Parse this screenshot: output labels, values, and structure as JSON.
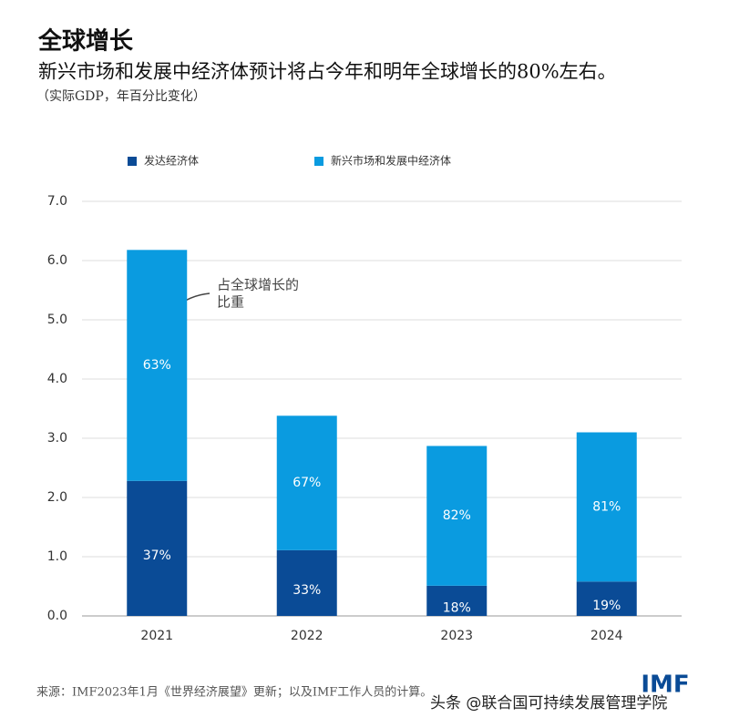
{
  "chart_data": {
    "type": "stacked_bar",
    "title": "全球增长",
    "subtitle": "新兴市场和发展中经济体预计将占今年和明年全球增长的80%左右。",
    "note": "（实际GDP，年百分比变化）",
    "categories": [
      "2021",
      "2022",
      "2023",
      "2024"
    ],
    "series": [
      {
        "name": "发达经济体",
        "color": "#0a4b96",
        "values": [
          2.28,
          1.11,
          0.51,
          0.58
        ],
        "share_labels": [
          "37%",
          "33%",
          "18%",
          "19%"
        ]
      },
      {
        "name": "新兴市场和发展中经济体",
        "color": "#0a9be0",
        "values": [
          3.9,
          2.27,
          2.36,
          2.52
        ],
        "share_labels": [
          "63%",
          "67%",
          "82%",
          "81%"
        ]
      }
    ],
    "ylim": [
      0,
      7
    ],
    "yticks": [
      {
        "value": 0,
        "label": "0.0"
      },
      {
        "value": 1,
        "label": "1.0"
      },
      {
        "value": 2,
        "label": "2.0"
      },
      {
        "value": 3,
        "label": "3.0"
      },
      {
        "value": 4,
        "label": "4.0"
      },
      {
        "value": 5,
        "label": "5.0"
      },
      {
        "value": 6,
        "label": "6.0"
      },
      {
        "value": 7,
        "label": "7.0"
      }
    ],
    "grid": true,
    "annotation": [
      "占全球增长的",
      "比重"
    ],
    "source": "来源：IMF2023年1月《世界经济展望》更新；以及IMF工作人员的计算。",
    "logo": "IMF",
    "watermark": "头条 @联合国可持续发展管理学院"
  }
}
